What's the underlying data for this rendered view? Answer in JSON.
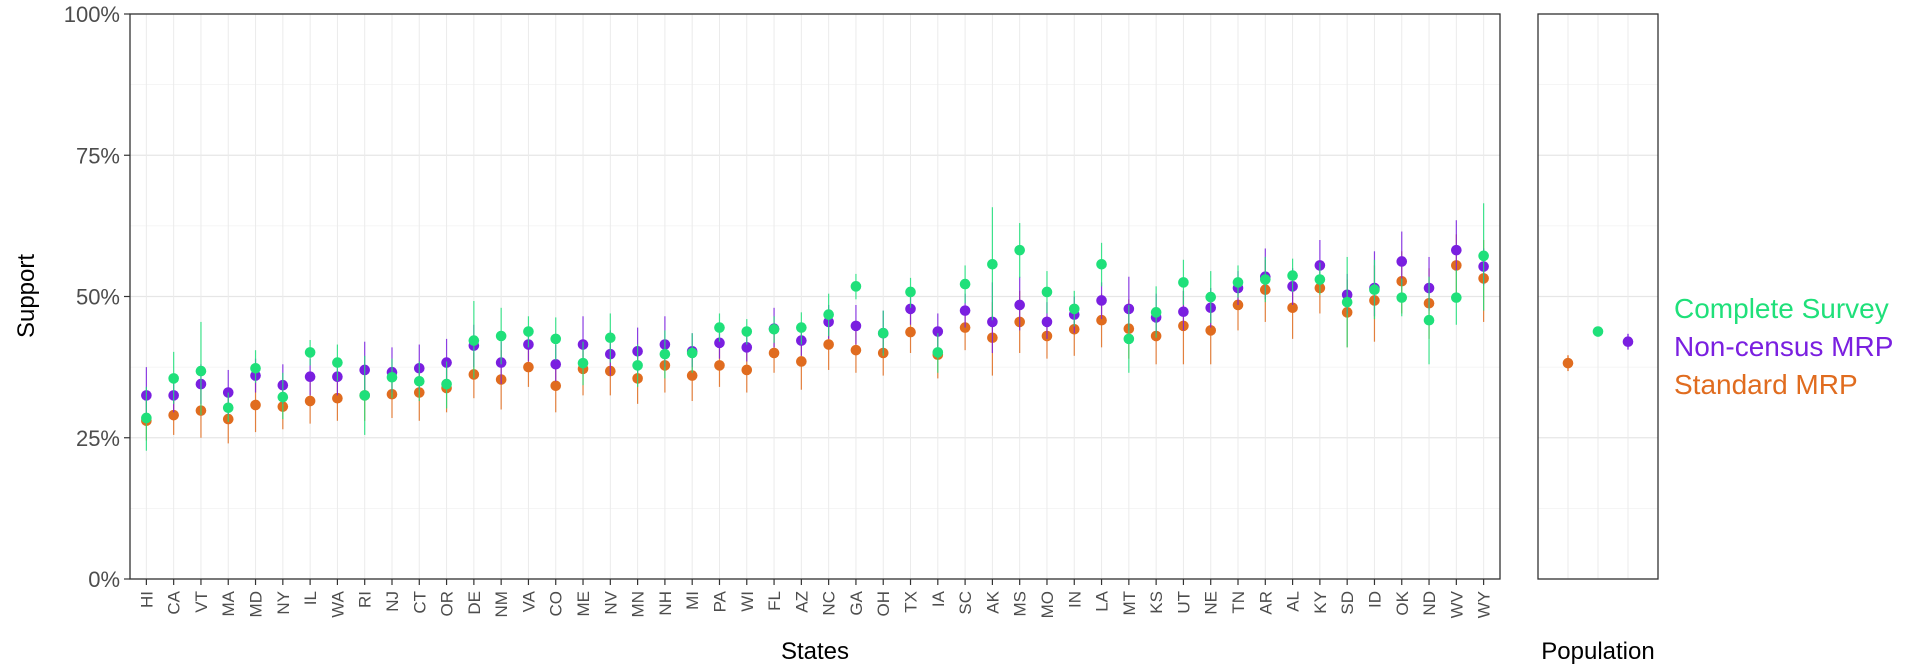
{
  "chart_data": [
    {
      "type": "scatter",
      "xlabel": "States",
      "ylabel": "Support",
      "ylim": [
        0,
        100
      ],
      "yticks": [
        "0%",
        "25%",
        "50%",
        "75%",
        "100%"
      ],
      "ytick_values": [
        0,
        25,
        50,
        75,
        100
      ],
      "grid": true,
      "error_bars": true,
      "categories": [
        "HI",
        "CA",
        "VT",
        "MA",
        "MD",
        "NY",
        "IL",
        "WA",
        "RI",
        "NJ",
        "CT",
        "OR",
        "DE",
        "NM",
        "VA",
        "CO",
        "ME",
        "NV",
        "MN",
        "NH",
        "MI",
        "PA",
        "WI",
        "FL",
        "AZ",
        "NC",
        "GA",
        "OH",
        "TX",
        "IA",
        "SC",
        "AK",
        "MS",
        "MO",
        "IN",
        "LA",
        "MT",
        "KS",
        "UT",
        "NE",
        "TN",
        "AR",
        "AL",
        "KY",
        "SD",
        "ID",
        "OK",
        "ND",
        "WV",
        "WY"
      ],
      "series": [
        {
          "name": "Complete Survey",
          "color": "#1fe07a",
          "values": [
            28.5,
            35.5,
            36.8,
            30.3,
            37.3,
            32.2,
            40.1,
            38.3,
            32.5,
            35.7,
            35.0,
            34.5,
            42.2,
            43.0,
            43.8,
            42.5,
            38.2,
            42.7,
            37.8,
            39.8,
            40.0,
            44.5,
            43.8,
            44.2,
            44.5,
            46.8,
            51.8,
            43.5,
            50.8,
            40.1,
            52.2,
            55.7,
            58.2,
            50.8,
            47.8,
            55.7,
            42.5,
            47.2,
            52.5,
            49.9,
            52.5,
            53.0,
            53.7,
            53.0,
            49.0,
            51.2,
            49.8,
            45.8,
            49.8,
            57.2
          ],
          "lower": [
            22.7,
            31.0,
            29.0,
            27.8,
            34.7,
            28.3,
            37.8,
            35.0,
            25.5,
            32.0,
            31.5,
            30.2,
            35.5,
            38.0,
            41.0,
            38.7,
            34.3,
            38.3,
            34.0,
            35.5,
            36.5,
            42.0,
            41.5,
            41.8,
            41.5,
            43.0,
            49.5,
            39.5,
            48.0,
            36.5,
            48.8,
            45.8,
            53.3,
            47.0,
            44.7,
            51.8,
            36.5,
            42.7,
            48.5,
            45.3,
            49.8,
            49.0,
            50.8,
            50.3,
            41.0,
            46.0,
            46.5,
            38.0,
            45.0,
            47.5
          ],
          "upper": [
            34.0,
            40.2,
            45.5,
            33.0,
            40.5,
            36.5,
            42.3,
            41.5,
            39.5,
            39.0,
            38.5,
            38.5,
            49.2,
            48.0,
            46.5,
            46.3,
            42.0,
            47.0,
            41.5,
            44.0,
            43.5,
            47.0,
            46.0,
            46.5,
            47.2,
            50.5,
            54.0,
            47.5,
            53.3,
            43.5,
            55.5,
            65.8,
            63.0,
            54.5,
            51.0,
            59.5,
            48.5,
            51.8,
            56.5,
            54.5,
            55.5,
            57.0,
            56.7,
            56.0,
            57.0,
            56.5,
            53.2,
            53.5,
            54.7,
            66.5
          ]
        },
        {
          "name": "Non-census MRP",
          "color": "#7a1fe0",
          "values": [
            32.5,
            32.5,
            34.5,
            33.0,
            36.0,
            34.3,
            35.8,
            35.8,
            37.0,
            36.6,
            37.3,
            38.3,
            41.3,
            38.3,
            41.5,
            38.0,
            41.5,
            39.8,
            40.3,
            41.5,
            40.3,
            41.8,
            41.0,
            44.3,
            42.2,
            45.5,
            44.8,
            43.5,
            47.8,
            43.8,
            47.5,
            45.5,
            48.5,
            45.5,
            46.8,
            49.3,
            47.8,
            46.3,
            47.3,
            48.0,
            51.5,
            53.5,
            51.8,
            55.5,
            50.3,
            51.5,
            56.2,
            51.5,
            58.2,
            55.3
          ],
          "lower": [
            28.5,
            29.5,
            31.0,
            29.0,
            33.0,
            31.0,
            32.5,
            32.5,
            32.5,
            33.0,
            33.5,
            34.5,
            37.5,
            34.5,
            38.5,
            35.0,
            37.5,
            36.0,
            36.5,
            37.5,
            37.5,
            39.0,
            38.5,
            41.0,
            39.5,
            42.5,
            41.5,
            40.0,
            45.0,
            40.5,
            44.5,
            40.0,
            44.0,
            42.5,
            43.5,
            46.0,
            44.0,
            43.5,
            44.0,
            44.5,
            48.5,
            49.5,
            48.5,
            52.0,
            47.0,
            46.5,
            52.0,
            47.5,
            54.5,
            52.0
          ],
          "upper": [
            37.5,
            35.5,
            38.0,
            37.0,
            39.0,
            38.0,
            39.0,
            39.0,
            42.0,
            41.0,
            41.5,
            42.5,
            45.0,
            42.0,
            44.5,
            41.5,
            46.5,
            44.0,
            44.5,
            46.5,
            43.5,
            44.5,
            43.5,
            48.0,
            45.0,
            48.5,
            48.5,
            47.5,
            50.5,
            47.0,
            50.5,
            52.5,
            53.5,
            49.0,
            50.0,
            52.5,
            53.5,
            50.5,
            51.0,
            51.5,
            54.5,
            58.5,
            55.0,
            60.0,
            54.0,
            58.0,
            61.5,
            57.0,
            63.5,
            58.5
          ]
        },
        {
          "name": "Standard MRP",
          "color": "#e06c1f",
          "values": [
            28.0,
            29.0,
            29.8,
            28.3,
            30.8,
            30.5,
            31.5,
            32.0,
            32.5,
            32.7,
            33.0,
            33.8,
            36.2,
            35.3,
            37.5,
            34.2,
            37.2,
            36.8,
            35.5,
            37.8,
            36.0,
            37.8,
            37.0,
            40.0,
            38.5,
            41.5,
            40.5,
            40.0,
            43.7,
            39.7,
            44.5,
            42.7,
            45.5,
            43.0,
            44.2,
            45.8,
            44.3,
            43.0,
            44.8,
            44.0,
            48.5,
            51.2,
            48.0,
            51.5,
            47.2,
            49.3,
            52.7,
            48.8,
            55.5,
            53.2
          ],
          "lower": [
            24.5,
            25.5,
            25.0,
            24.0,
            26.0,
            26.5,
            27.5,
            28.0,
            28.0,
            28.5,
            28.0,
            29.5,
            32.0,
            30.0,
            34.0,
            29.5,
            32.5,
            32.5,
            31.0,
            33.0,
            31.5,
            34.0,
            33.0,
            36.5,
            33.5,
            37.0,
            36.5,
            36.0,
            40.0,
            35.5,
            40.5,
            36.0,
            40.0,
            39.0,
            39.5,
            41.0,
            39.0,
            38.0,
            38.0,
            38.0,
            44.0,
            45.5,
            42.5,
            47.0,
            41.0,
            42.0,
            47.0,
            42.5,
            50.0,
            45.5
          ],
          "upper": [
            31.5,
            33.0,
            35.0,
            32.5,
            35.0,
            34.5,
            35.5,
            36.0,
            37.5,
            37.0,
            38.0,
            38.0,
            40.0,
            40.5,
            41.0,
            38.5,
            42.0,
            41.0,
            40.0,
            42.0,
            40.0,
            41.5,
            41.0,
            43.5,
            43.0,
            45.5,
            44.5,
            44.0,
            47.5,
            44.0,
            48.0,
            49.0,
            51.0,
            46.5,
            48.5,
            50.5,
            49.5,
            47.5,
            51.0,
            49.5,
            53.0,
            56.5,
            53.0,
            56.0,
            53.0,
            55.5,
            58.0,
            55.0,
            61.0,
            60.0
          ]
        }
      ]
    },
    {
      "type": "scatter",
      "xlabel": "Population",
      "ylim": [
        0,
        100
      ],
      "error_bars": true,
      "series": [
        {
          "name": "Standard MRP",
          "color": "#e06c1f",
          "value": 38.2,
          "lower": 36.8,
          "upper": 39.6
        },
        {
          "name": "Complete Survey",
          "color": "#1fe07a",
          "value": 43.8,
          "lower": 43.2,
          "upper": 44.4
        },
        {
          "name": "Non-census MRP",
          "color": "#7a1fe0",
          "value": 42.0,
          "lower": 40.6,
          "upper": 43.4
        }
      ]
    }
  ],
  "legend": {
    "placement": "right",
    "items": [
      {
        "label": "Complete Survey",
        "color": "#1fe07a"
      },
      {
        "label": "Non-census MRP",
        "color": "#7a1fe0"
      },
      {
        "label": "Standard MRP",
        "color": "#e06c1f"
      }
    ]
  }
}
